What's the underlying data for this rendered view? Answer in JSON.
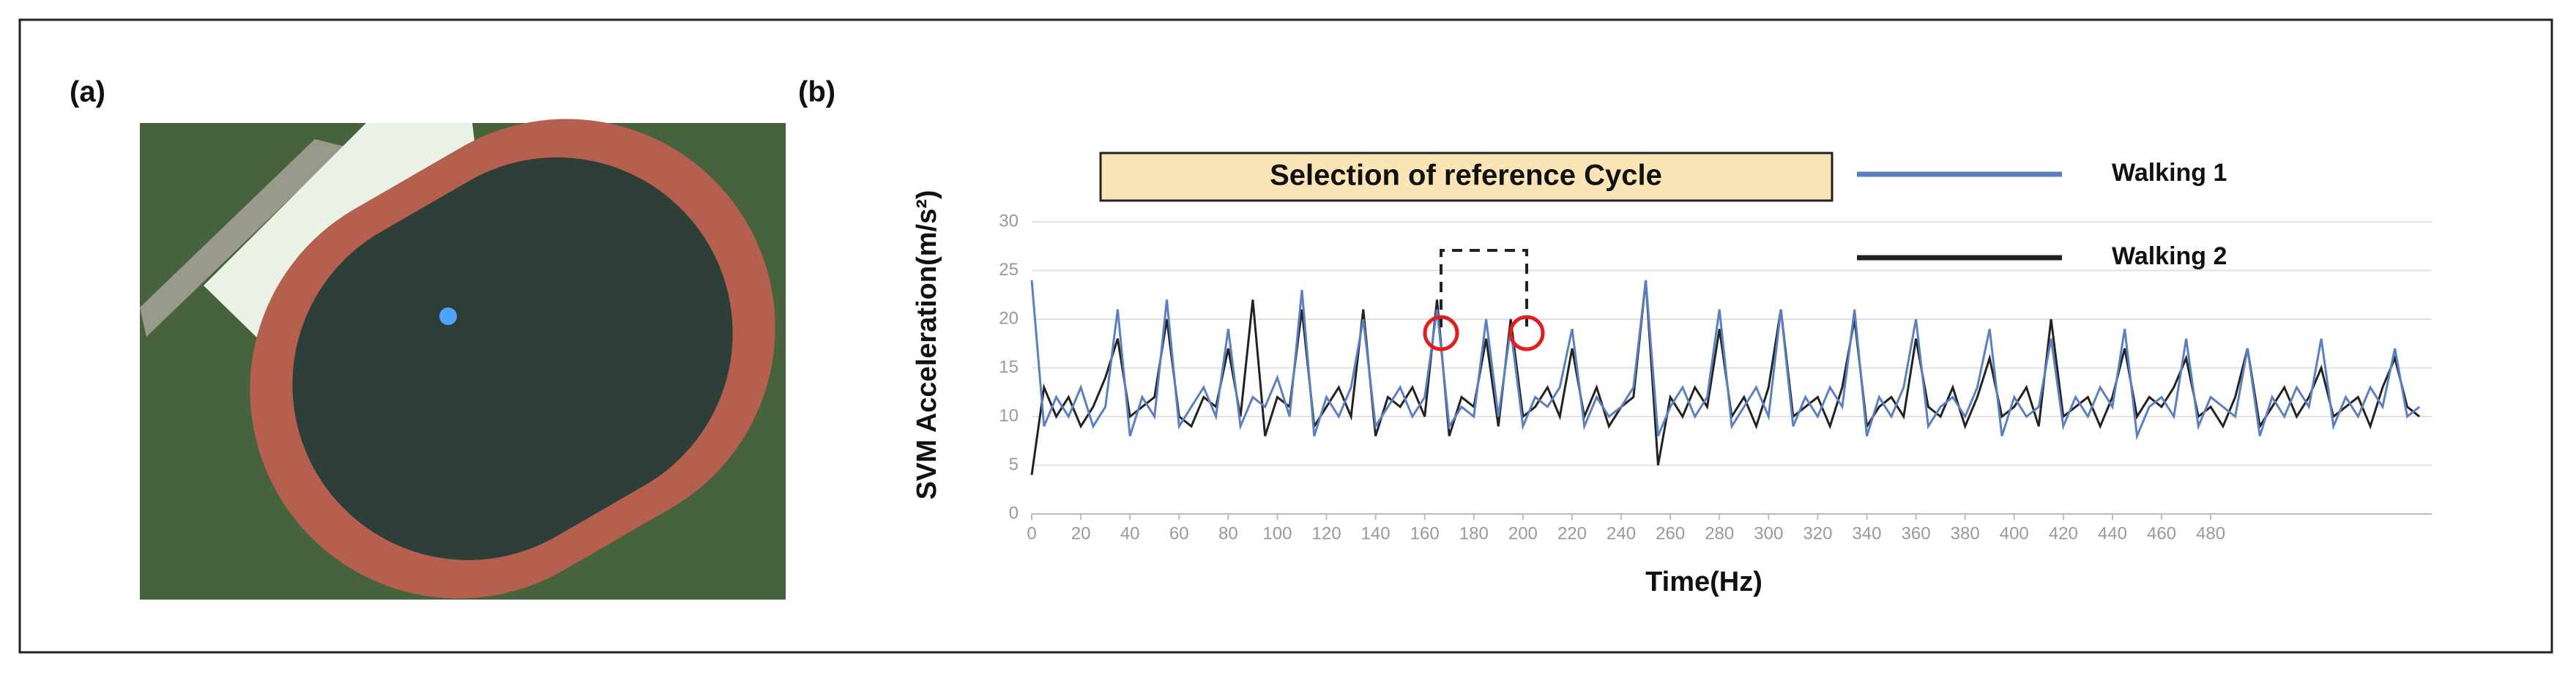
{
  "panel_a_label": "(a)",
  "chart_data": {
    "type": "line",
    "panel_label": "(b)",
    "annotation": "Selection of reference  Cycle",
    "y_label": "SVM Acceleration(m/s²)",
    "x_label": "Time(Hz)",
    "xlim": [
      0,
      570
    ],
    "ylim": [
      0,
      30
    ],
    "xticks": [
      0,
      20,
      40,
      60,
      80,
      100,
      120,
      140,
      160,
      180,
      200,
      220,
      240,
      260,
      280,
      300,
      320,
      340,
      360,
      380,
      400,
      420,
      440,
      460,
      480
    ],
    "yticks": [
      0,
      5,
      10,
      15,
      20,
      25,
      30
    ],
    "grid": true,
    "x": [
      0,
      5,
      10,
      15,
      20,
      25,
      30,
      35,
      40,
      45,
      50,
      55,
      60,
      65,
      70,
      75,
      80,
      85,
      90,
      95,
      100,
      105,
      110,
      115,
      120,
      125,
      130,
      135,
      140,
      145,
      150,
      155,
      160,
      165,
      170,
      175,
      180,
      185,
      190,
      195,
      200,
      205,
      210,
      215,
      220,
      225,
      230,
      235,
      240,
      245,
      250,
      255,
      260,
      265,
      270,
      275,
      280,
      285,
      290,
      295,
      300,
      305,
      310,
      315,
      320,
      325,
      330,
      335,
      340,
      345,
      350,
      355,
      360,
      365,
      370,
      375,
      380,
      385,
      390,
      395,
      400,
      405,
      410,
      415,
      420,
      425,
      430,
      435,
      440,
      445,
      450,
      455,
      460,
      465,
      470,
      475,
      480,
      485,
      490,
      495,
      500,
      505,
      510,
      515,
      520,
      525,
      530,
      535,
      540,
      545,
      550,
      555,
      560,
      565
    ],
    "series": [
      {
        "name": "Walking 1",
        "color": "#5b7fc0",
        "values": [
          24,
          9,
          12,
          10,
          13,
          9,
          11,
          21,
          8,
          12,
          10,
          22,
          9,
          11,
          13,
          10,
          19,
          9,
          12,
          11,
          14,
          10,
          23,
          8,
          12,
          10,
          13,
          20,
          9,
          11,
          13,
          10,
          12,
          21,
          9,
          11,
          10,
          20,
          10,
          19,
          9,
          12,
          11,
          13,
          19,
          9,
          12,
          10,
          11,
          13,
          24,
          8,
          11,
          13,
          10,
          12,
          21,
          9,
          11,
          13,
          10,
          21,
          9,
          12,
          10,
          13,
          11,
          21,
          8,
          12,
          10,
          13,
          20,
          9,
          11,
          12,
          10,
          13,
          19,
          8,
          12,
          10,
          11,
          18,
          9,
          12,
          10,
          13,
          11,
          19,
          8,
          11,
          12,
          10,
          18,
          9,
          12,
          11,
          10,
          17,
          8,
          12,
          10,
          13,
          11,
          18,
          9,
          12,
          10,
          13,
          11,
          17,
          10,
          11
        ]
      },
      {
        "name": "Walking 2",
        "color": "#222222",
        "values": [
          4,
          13,
          10,
          12,
          9,
          11,
          14,
          18,
          10,
          11,
          12,
          20,
          10,
          9,
          12,
          11,
          17,
          10,
          22,
          8,
          12,
          11,
          21,
          9,
          11,
          13,
          10,
          21,
          8,
          12,
          11,
          13,
          10,
          22,
          8,
          12,
          11,
          18,
          9,
          20,
          10,
          11,
          13,
          10,
          17,
          10,
          13,
          9,
          11,
          12,
          24,
          5,
          12,
          10,
          13,
          11,
          19,
          10,
          12,
          9,
          13,
          21,
          10,
          11,
          12,
          9,
          13,
          20,
          9,
          11,
          12,
          10,
          18,
          11,
          10,
          13,
          9,
          12,
          16,
          10,
          11,
          13,
          9,
          20,
          10,
          11,
          12,
          9,
          12,
          17,
          10,
          12,
          11,
          13,
          16,
          10,
          11,
          9,
          12,
          17,
          9,
          11,
          13,
          10,
          12,
          15,
          10,
          11,
          12,
          9,
          13,
          16,
          11,
          10
        ]
      }
    ]
  }
}
